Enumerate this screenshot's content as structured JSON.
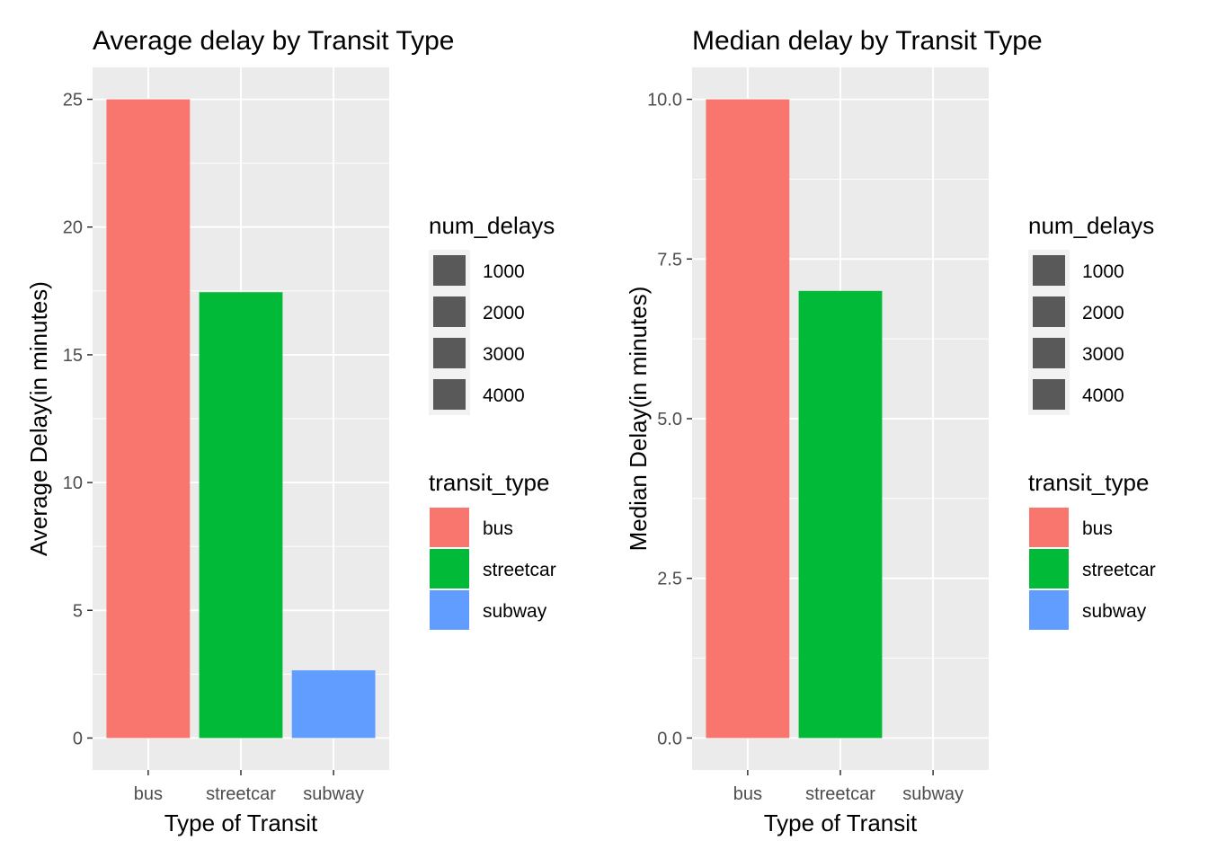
{
  "chart_data": [
    {
      "type": "bar",
      "title": "Average delay by Transit Type",
      "xlabel": "Type of Transit",
      "ylabel": "Average Delay(in minutes)",
      "categories": [
        "bus",
        "streetcar",
        "subway"
      ],
      "values": [
        25.0,
        17.45,
        2.65
      ],
      "ylim": [
        -1.25,
        26.25
      ],
      "yticks": [
        0,
        5,
        10,
        15,
        20,
        25
      ],
      "ytick_labels": [
        "0",
        "5",
        "10",
        "15",
        "20",
        "25"
      ],
      "grid": true,
      "legend_position": "right",
      "colors": [
        "#F8766D",
        "#00BA38",
        "#619CFF"
      ]
    },
    {
      "type": "bar",
      "title": "Median delay by Transit Type",
      "xlabel": "Type of Transit",
      "ylabel": "Median Delay(in minutes)",
      "categories": [
        "bus",
        "streetcar",
        "subway"
      ],
      "values": [
        10.0,
        7.0,
        0.0
      ],
      "ylim": [
        -0.5,
        10.5
      ],
      "yticks": [
        0,
        2.5,
        5,
        7.5,
        10
      ],
      "ytick_labels": [
        "0.0",
        "2.5",
        "5.0",
        "7.5",
        "10.0"
      ],
      "grid": true,
      "legend_position": "right",
      "colors": [
        "#F8766D",
        "#00BA38",
        "#619CFF"
      ]
    }
  ],
  "legends": [
    {
      "size_title": "num_delays",
      "size_labels": [
        "1000",
        "2000",
        "3000",
        "4000"
      ],
      "fill_title": "transit_type",
      "fill_labels": [
        "bus",
        "streetcar",
        "subway"
      ]
    },
    {
      "size_title": "num_delays",
      "size_labels": [
        "1000",
        "2000",
        "3000",
        "4000"
      ],
      "fill_title": "transit_type",
      "fill_labels": [
        "bus",
        "streetcar",
        "subway"
      ]
    }
  ],
  "style": {
    "panel_bg": "#EBEBEB",
    "grid_color": "#FFFFFF",
    "tick_text_color": "#4D4D4D",
    "text_color": "#000000",
    "size_key_color": "#595959",
    "legend_key_bg": "#F2F2F2"
  }
}
